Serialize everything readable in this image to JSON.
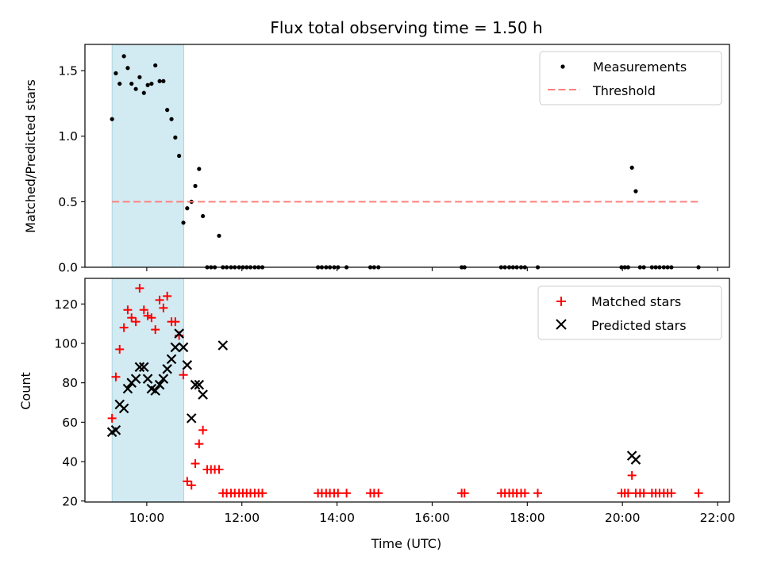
{
  "figure": {
    "title": "Flux total observing time = 1.50 h",
    "xlabel": "Time (UTC)",
    "x_tick_labels": [
      "10:00",
      "12:00",
      "14:00",
      "16:00",
      "18:00",
      "20:00",
      "22:00"
    ],
    "colors": {
      "measurement": "#000000",
      "threshold": "#ff7f7f",
      "matched": "#ff0000",
      "predicted": "#000000",
      "shade": "#add8e6"
    }
  },
  "chart_data": [
    {
      "type": "scatter",
      "ylabel": "Matched/Predicted stars",
      "xlim": [
        8.7,
        22.25
      ],
      "ylim": [
        0,
        1.7
      ],
      "x_ticks": [
        10,
        12,
        14,
        16,
        18,
        20,
        22
      ],
      "y_ticks": [
        0.0,
        0.5,
        1.0,
        1.5
      ],
      "y_tick_labels": [
        "0.0",
        "0.5",
        "1.0",
        "1.5"
      ],
      "shaded_span": [
        9.27,
        10.78
      ],
      "legend": {
        "placement": "top-right",
        "measurements": "Measurements",
        "threshold": "Threshold"
      },
      "threshold": {
        "y": 0.5,
        "x_range": [
          9.27,
          21.6
        ]
      },
      "series": [
        {
          "name": "Measurements",
          "x": [
            9.27,
            9.35,
            9.43,
            9.52,
            9.6,
            9.68,
            9.77,
            9.85,
            9.94,
            10.02,
            10.1,
            10.18,
            10.27,
            10.35,
            10.43,
            10.52,
            10.6,
            10.68,
            10.77,
            10.85,
            10.94,
            11.02,
            11.1,
            11.18,
            11.27,
            11.35,
            11.43,
            11.52,
            11.6,
            11.68,
            11.77,
            11.85,
            11.94,
            12.02,
            12.1,
            12.18,
            12.27,
            12.35,
            12.43,
            13.6,
            13.68,
            13.77,
            13.85,
            13.94,
            14.02,
            14.2,
            14.7,
            14.78,
            14.87,
            16.62,
            16.68,
            17.45,
            17.53,
            17.62,
            17.7,
            17.78,
            17.87,
            17.95,
            18.22,
            19.98,
            20.05,
            20.12,
            20.2,
            20.28,
            20.37,
            20.45,
            20.62,
            20.7,
            20.78,
            20.87,
            20.95,
            21.03,
            21.6
          ],
          "y": [
            1.13,
            1.48,
            1.4,
            1.61,
            1.52,
            1.4,
            1.36,
            1.45,
            1.33,
            1.39,
            1.4,
            1.54,
            1.42,
            1.42,
            1.2,
            1.13,
            0.99,
            0.85,
            0.34,
            0.45,
            0.5,
            0.62,
            0.75,
            0.39,
            0,
            0,
            0,
            0.24,
            0,
            0,
            0,
            0,
            0,
            0,
            0,
            0,
            0,
            0,
            0,
            0,
            0,
            0,
            0,
            0,
            0,
            0,
            0,
            0,
            0,
            0,
            0,
            0,
            0,
            0,
            0,
            0,
            0,
            0,
            0,
            0,
            0,
            0,
            0.76,
            0.58,
            0,
            0,
            0,
            0,
            0,
            0,
            0,
            0,
            0
          ]
        }
      ]
    },
    {
      "type": "scatter",
      "ylabel": "Count",
      "xlim": [
        8.7,
        22.25
      ],
      "ylim": [
        19.5,
        133
      ],
      "x_ticks": [
        10,
        12,
        14,
        16,
        18,
        20,
        22
      ],
      "y_ticks": [
        20,
        40,
        60,
        80,
        100,
        120
      ],
      "y_tick_labels": [
        "20",
        "40",
        "60",
        "80",
        "100",
        "120"
      ],
      "shaded_span": [
        9.27,
        10.78
      ],
      "legend": {
        "placement": "top-right",
        "matched": "Matched stars",
        "predicted": "Predicted stars"
      },
      "series": [
        {
          "name": "Matched stars",
          "x": [
            9.27,
            9.35,
            9.43,
            9.52,
            9.6,
            9.68,
            9.77,
            9.85,
            9.94,
            10.02,
            10.1,
            10.18,
            10.27,
            10.35,
            10.43,
            10.52,
            10.6,
            10.68,
            10.77,
            10.85,
            10.94,
            11.02,
            11.1,
            11.18,
            11.27,
            11.35,
            11.43,
            11.52,
            11.6,
            11.68,
            11.77,
            11.85,
            11.94,
            12.02,
            12.1,
            12.18,
            12.27,
            12.35,
            12.43,
            13.6,
            13.68,
            13.77,
            13.85,
            13.94,
            14.02,
            14.2,
            14.7,
            14.78,
            14.87,
            16.62,
            16.68,
            17.45,
            17.53,
            17.62,
            17.7,
            17.78,
            17.87,
            17.95,
            18.22,
            19.98,
            20.05,
            20.12,
            20.2,
            20.28,
            20.37,
            20.45,
            20.62,
            20.7,
            20.78,
            20.87,
            20.95,
            21.03,
            21.6
          ],
          "y": [
            62,
            83,
            97,
            108,
            117,
            113,
            111,
            128,
            117,
            114,
            113,
            107,
            122,
            118,
            124,
            111,
            111,
            104,
            84,
            30,
            28,
            39,
            49,
            56,
            36,
            36,
            36,
            36,
            24,
            24,
            24,
            24,
            24,
            24,
            24,
            24,
            24,
            24,
            24,
            24,
            24,
            24,
            24,
            24,
            24,
            24,
            24,
            24,
            24,
            24,
            24,
            24,
            24,
            24,
            24,
            24,
            24,
            24,
            24,
            24,
            24,
            24,
            33,
            24,
            24,
            24,
            24,
            24,
            24,
            24,
            24,
            24,
            24
          ]
        },
        {
          "name": "Predicted stars",
          "x": [
            9.27,
            9.35,
            9.43,
            9.52,
            9.6,
            9.68,
            9.77,
            9.85,
            9.94,
            10.02,
            10.1,
            10.18,
            10.27,
            10.35,
            10.43,
            10.52,
            10.6,
            10.68,
            10.77,
            10.85,
            10.94,
            11.02,
            11.1,
            11.18,
            11.6,
            20.2,
            20.28
          ],
          "y": [
            55,
            56,
            69,
            67,
            77,
            80,
            82,
            88,
            88,
            82,
            77,
            76,
            79,
            82,
            87,
            92,
            98,
            105,
            98,
            89,
            62,
            79,
            79,
            74,
            99,
            43,
            41
          ]
        }
      ]
    }
  ]
}
